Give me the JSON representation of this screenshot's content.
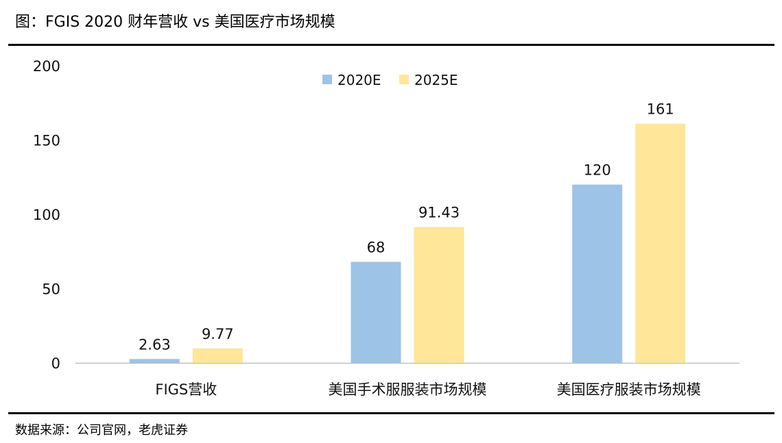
{
  "title": "图：FGIS 2020 财年营收 vs 美国医疗市场规模",
  "source": "数据来源：公司官网，老虎证券",
  "colors": {
    "series_2020E": "#9DC3E6",
    "series_2025E": "#FFE699",
    "axis": "#BFBFBF"
  },
  "chart_data": {
    "type": "bar",
    "categories": [
      "FIGS营收",
      "美国手术服服装市场规模",
      "美国医疗服装市场规模"
    ],
    "series": [
      {
        "name": "2020E",
        "values": [
          2.63,
          68,
          120
        ],
        "labels": [
          "2.63",
          "68",
          "120"
        ]
      },
      {
        "name": "2025E",
        "values": [
          9.77,
          91.43,
          161
        ],
        "labels": [
          "9.77",
          "91.43",
          "161"
        ]
      }
    ],
    "ylim": [
      0,
      200
    ],
    "yticks": [
      "0",
      "50",
      "100",
      "150",
      "200"
    ],
    "xlabel": "",
    "ylabel": "",
    "grid": false,
    "legend": "top-center"
  }
}
